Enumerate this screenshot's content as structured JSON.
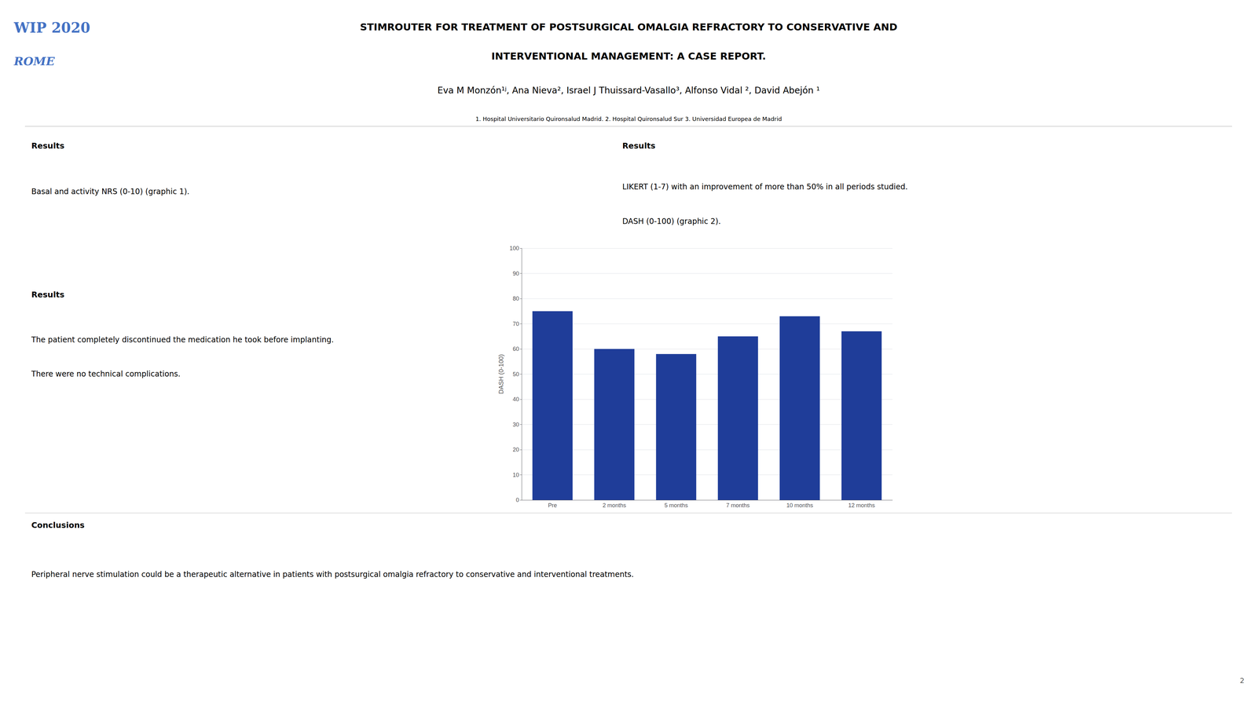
{
  "chart_data": {
    "type": "bar",
    "annotations": [
      "WIP 2020",
      "ROME",
      "STIMROUTER FOR TREATMENT OF POSTSURGICAL OMALGIA REFRACTORY TO CONSERVATIVE AND",
      "INTERVENTIONAL MANAGEMENT: A CASE REPORT.",
      "Eva M Monzón¹ʲ, Ana Nieva², Israel J Thuissard-Vasallo³, Alfonso Vidal ², David Abejón ¹",
      "1. Hospital Universitario Quironsalud Madrid. 2. Hospital Quironsalud Sur 3. Universidad Europea de Madrid",
      "Results",
      "Basal and activity NRS (0-10) (graphic 1).",
      "Results",
      "LIKERT (1-7) with an improvement of more than 50% in all periods studied.",
      "DASH (0-100) (graphic 2).",
      "Results",
      "The patient completely discontinued the medication he took before implanting.",
      "There were no technical complications.",
      "Conclusions",
      "Peripheral nerve stimulation could be a therapeutic alternative in patients with postsurgical omalgia refractory to conservative and interventional treatments.",
      "2"
    ],
    "categories": [
      "Pre",
      "2 months",
      "5 months",
      "7 months",
      "10 months",
      "12 months"
    ],
    "values": [
      75,
      60,
      58,
      65,
      73,
      67
    ],
    "color": "#1F3D99",
    "ylabel": "DASH (0-100)",
    "ylim": [
      0,
      100
    ],
    "yticks": [
      0,
      10,
      20,
      30,
      40,
      50,
      60,
      70,
      80,
      90,
      100
    ],
    "grid": true
  }
}
